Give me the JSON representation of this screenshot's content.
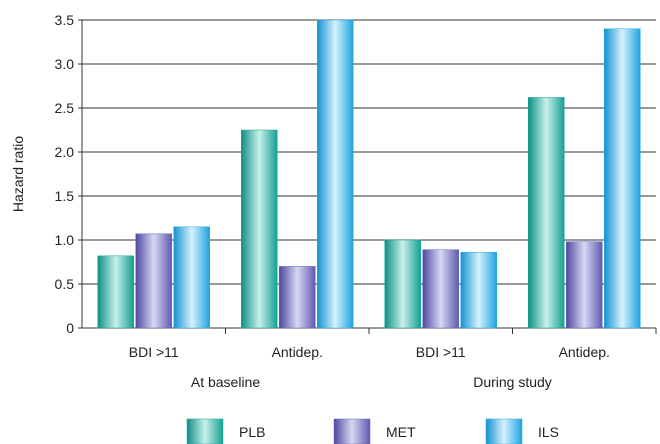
{
  "chart_data": {
    "type": "bar",
    "ylabel": "Hazard ratio",
    "ylim": [
      0,
      3.5
    ],
    "yticks": [
      "0",
      "0.5",
      "1.0",
      "1.5",
      "2.0",
      "2.5",
      "3.0",
      "3.5"
    ],
    "grid": true,
    "legend_position": "bottom",
    "groups": [
      {
        "label": "At baseline",
        "categories": [
          "BDI >11",
          "Antidep."
        ]
      },
      {
        "label": "During study",
        "categories": [
          "BDI >11",
          "Antidep."
        ]
      }
    ],
    "categories": [
      "BDI >11",
      "Antidep.",
      "BDI >11",
      "Antidep."
    ],
    "series": [
      {
        "name": "PLB",
        "color": "#1aa79a",
        "values": [
          0.82,
          2.25,
          1.0,
          2.62
        ]
      },
      {
        "name": "MET",
        "color": "#6a66b8",
        "values": [
          1.07,
          0.7,
          0.89,
          0.98
        ]
      },
      {
        "name": "ILS",
        "color": "#24a9e3",
        "values": [
          1.15,
          3.5,
          0.86,
          3.4
        ]
      }
    ]
  }
}
